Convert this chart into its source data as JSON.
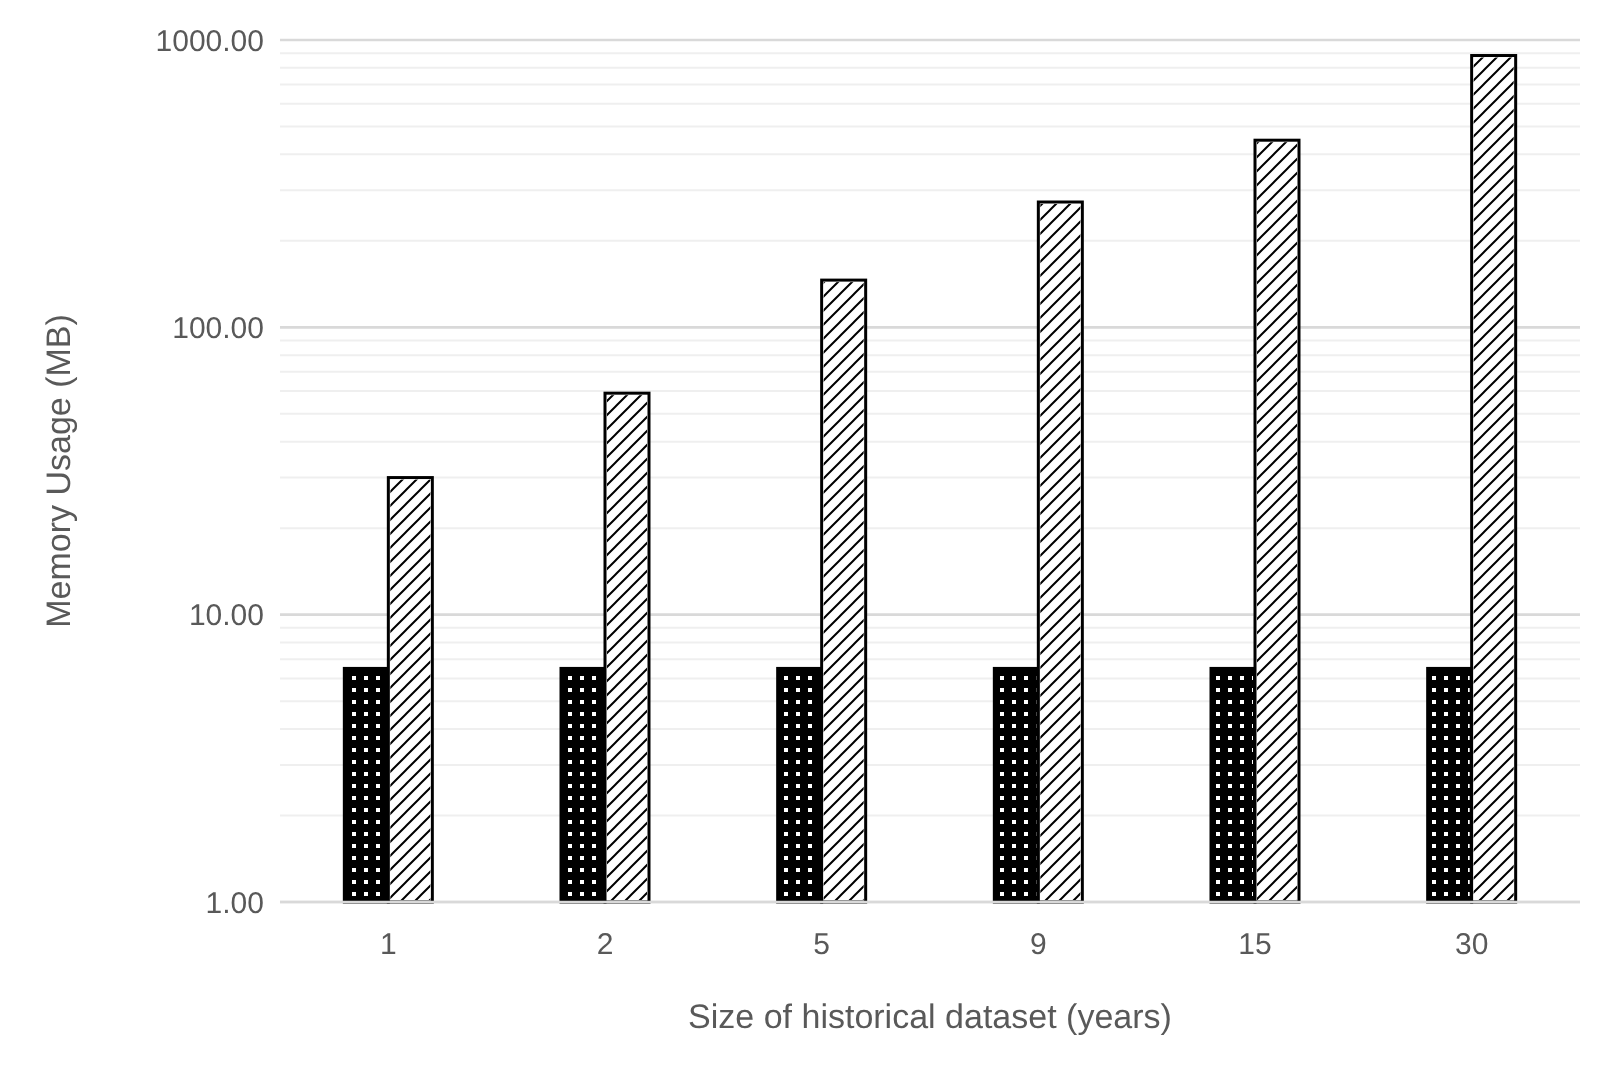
{
  "chart_data": {
    "type": "bar",
    "xlabel": "Size of historical dataset (years)",
    "ylabel": "Memory Usage (MB)",
    "categories": [
      "1",
      "2",
      "5",
      "9",
      "15",
      "30"
    ],
    "series": [
      {
        "color": "#000000",
        "values": [
          6.5,
          6.5,
          6.5,
          6.5,
          6.5,
          6.5
        ]
      },
      {
        "color": "#ffffff",
        "values": [
          30,
          59,
          146,
          273,
          448,
          883
        ]
      }
    ],
    "log": true,
    "ylim": [
      1,
      1000
    ],
    "yticks": [
      {
        "value": 1,
        "label": "1.00"
      },
      {
        "value": 10,
        "label": "10.00"
      },
      {
        "value": 100,
        "label": "100.00"
      },
      {
        "value": 1000,
        "label": "1000.00"
      }
    ],
    "grid": true
  }
}
